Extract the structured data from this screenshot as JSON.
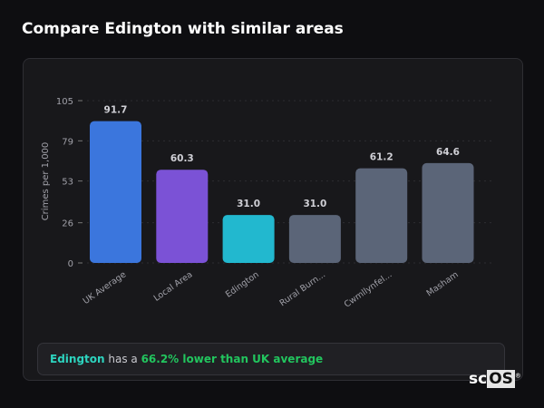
{
  "title": "Compare Edington with similar areas",
  "chart_data": {
    "type": "bar",
    "ylabel": "Crimes per 1,000",
    "ylim": [
      0,
      105
    ],
    "yticks": [
      0,
      26,
      53,
      79,
      105
    ],
    "categories": [
      "UK Average",
      "Local Area",
      "Edington",
      "Rural Burn...",
      "Cwmllynfel...",
      "Masham"
    ],
    "values": [
      91.7,
      60.3,
      31.0,
      31.0,
      61.2,
      64.6
    ],
    "value_labels": [
      "91.7",
      "60.3",
      "31.0",
      "31.0",
      "61.2",
      "64.6"
    ],
    "colors": [
      "#3b76dd",
      "#7b52d6",
      "#22b8cf",
      "#5b6578",
      "#5b6578",
      "#5b6578"
    ],
    "grid": true
  },
  "summary": {
    "place": "Edington",
    "middle": " has a ",
    "highlight": "66.2% lower than UK average"
  },
  "logo": "scOS"
}
